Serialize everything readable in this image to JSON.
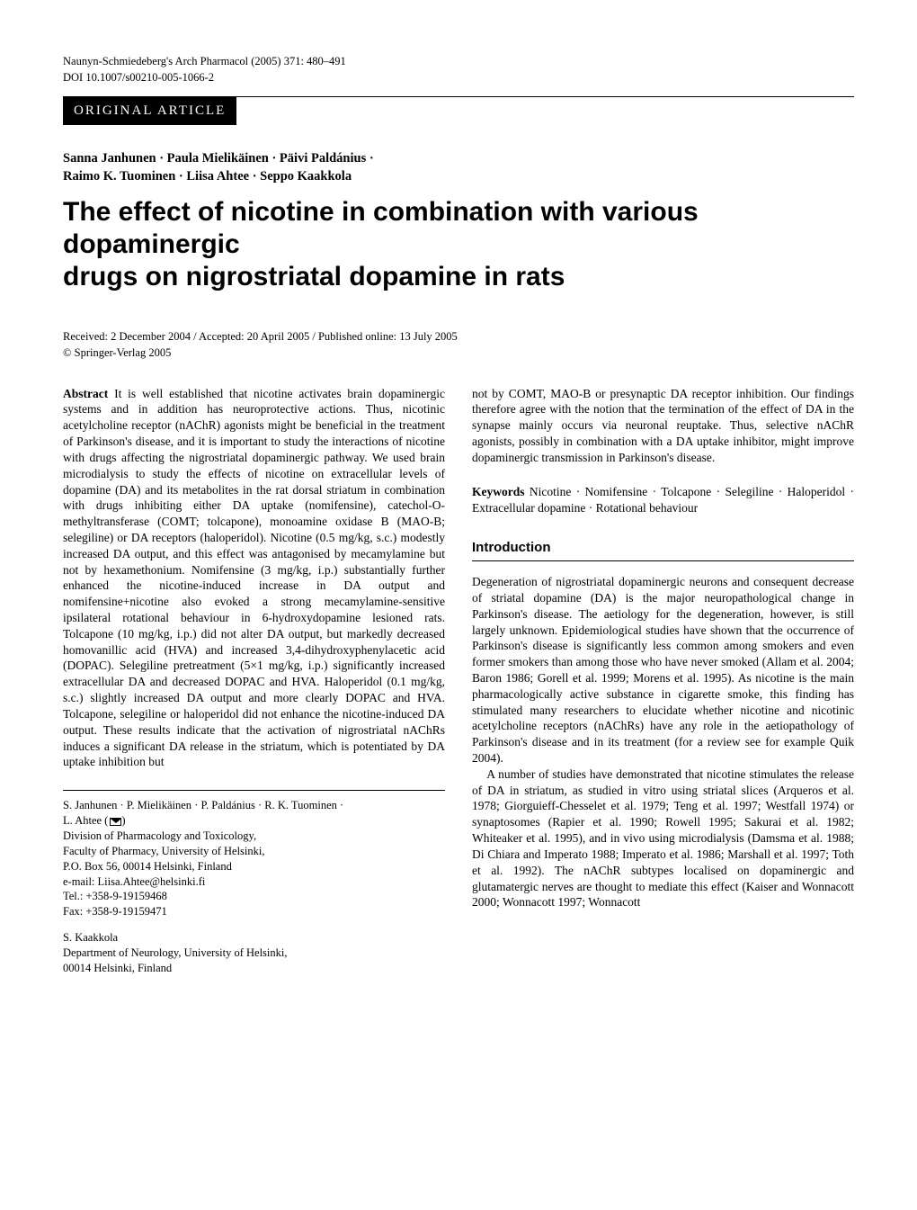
{
  "header": {
    "journal_line": "Naunyn-Schmiedeberg's Arch Pharmacol (2005) 371: 480–491",
    "doi": "DOI 10.1007/s00210-005-1066-2",
    "banner": "ORIGINAL ARTICLE"
  },
  "authors_line1": "Sanna Janhunen · Paula Mielikäinen · Päivi Paldánius ·",
  "authors_line2": "Raimo K. Tuominen · Liisa Ahtee · Seppo Kaakkola",
  "title_line1": "The effect of nicotine in combination with various dopaminergic",
  "title_line2": "drugs on nigrostriatal dopamine in rats",
  "dates": "Received: 2 December 2004 / Accepted: 20 April 2005 / Published online: 13 July 2005",
  "copyright": "© Springer-Verlag 2005",
  "abstract": {
    "label": "Abstract",
    "text": "It is well established that nicotine activates brain dopaminergic systems and in addition has neuroprotective actions. Thus, nicotinic acetylcholine receptor (nAChR) agonists might be beneficial in the treatment of Parkinson's disease, and it is important to study the interactions of nicotine with drugs affecting the nigrostriatal dopaminergic pathway. We used brain microdialysis to study the effects of nicotine on extracellular levels of dopamine (DA) and its metabolites in the rat dorsal striatum in combination with drugs inhibiting either DA uptake (nomifensine), catechol-O-methyltransferase (COMT; tolcapone), monoamine oxidase B (MAO-B; selegiline) or DA receptors (haloperidol). Nicotine (0.5 mg/kg, s.c.) modestly increased DA output, and this effect was antagonised by mecamylamine but not by hexamethonium. Nomifensine (3 mg/kg, i.p.) substantially further enhanced the nicotine-induced increase in DA output and nomifensine+nicotine also evoked a strong mecamylamine-sensitive ipsilateral rotational behaviour in 6-hydroxydopamine lesioned rats. Tolcapone (10 mg/kg, i.p.) did not alter DA output, but markedly decreased homovanillic acid (HVA) and increased 3,4-dihydroxyphenylacetic acid (DOPAC). Selegiline pretreatment (5×1 mg/kg, i.p.) significantly increased extracellular DA and decreased DOPAC and HVA. Haloperidol (0.1 mg/kg, s.c.) slightly increased DA output and more clearly DOPAC and HVA. Tolcapone, selegiline or haloperidol did not enhance the nicotine-induced DA output. These results indicate that the activation of nigrostriatal nAChRs induces a significant DA release in the striatum, which is potentiated by DA uptake inhibition but"
  },
  "right_col": {
    "continuation": "not by COMT, MAO-B or presynaptic DA receptor inhibition. Our findings therefore agree with the notion that the termination of the effect of DA in the synapse mainly occurs via neuronal reuptake. Thus, selective nAChR agonists, possibly in combination with a DA uptake inhibitor, might improve dopaminergic transmission in Parkinson's disease.",
    "keywords_label": "Keywords",
    "keywords": "Nicotine · Nomifensine · Tolcapone · Selegiline · Haloperidol · Extracellular dopamine · Rotational behaviour",
    "intro_heading": "Introduction",
    "intro_p1": "Degeneration of nigrostriatal dopaminergic neurons and consequent decrease of striatal dopamine (DA) is the major neuropathological change in Parkinson's disease. The aetiology for the degeneration, however, is still largely unknown. Epidemiological studies have shown that the occurrence of Parkinson's disease is significantly less common among smokers and even former smokers than among those who have never smoked (Allam et al. 2004; Baron 1986; Gorell et al. 1999; Morens et al. 1995). As nicotine is the main pharmacologically active substance in cigarette smoke, this finding has stimulated many researchers to elucidate whether nicotine and nicotinic acetylcholine receptors (nAChRs) have any role in the aetiopathology of Parkinson's disease and in its treatment (for a review see for example Quik 2004).",
    "intro_p2": "A number of studies have demonstrated that nicotine stimulates the release of DA in striatum, as studied in vitro using striatal slices (Arqueros et al. 1978; Giorguieff-Chesselet et al. 1979; Teng et al. 1997; Westfall 1974) or synaptosomes (Rapier et al. 1990; Rowell 1995; Sakurai et al. 1982; Whiteaker et al. 1995), and in vivo using microdialysis (Damsma et al. 1988; Di Chiara and Imperato 1988; Imperato et al. 1986; Marshall et al. 1997; Toth et al. 1992). The nAChR subtypes localised on dopaminergic and glutamatergic nerves are thought to mediate this effect (Kaiser and Wonnacott 2000; Wonnacott 1997; Wonnacott"
  },
  "affiliation1": {
    "authors": "S. Janhunen · P. Mielikäinen · P. Paldánius · R. K. Tuominen ·",
    "corresponding": "L. Ahtee (",
    "corresponding_close": ")",
    "dept": "Division of Pharmacology and Toxicology,",
    "faculty": "Faculty of Pharmacy, University of Helsinki,",
    "address": "P.O. Box 56, 00014 Helsinki, Finland",
    "email": "e-mail: Liisa.Ahtee@helsinki.fi",
    "tel": "Tel.: +358-9-19159468",
    "fax": "Fax: +358-9-19159471"
  },
  "affiliation2": {
    "author": "S. Kaakkola",
    "dept": "Department of Neurology, University of Helsinki,",
    "address": "00014 Helsinki, Finland"
  }
}
